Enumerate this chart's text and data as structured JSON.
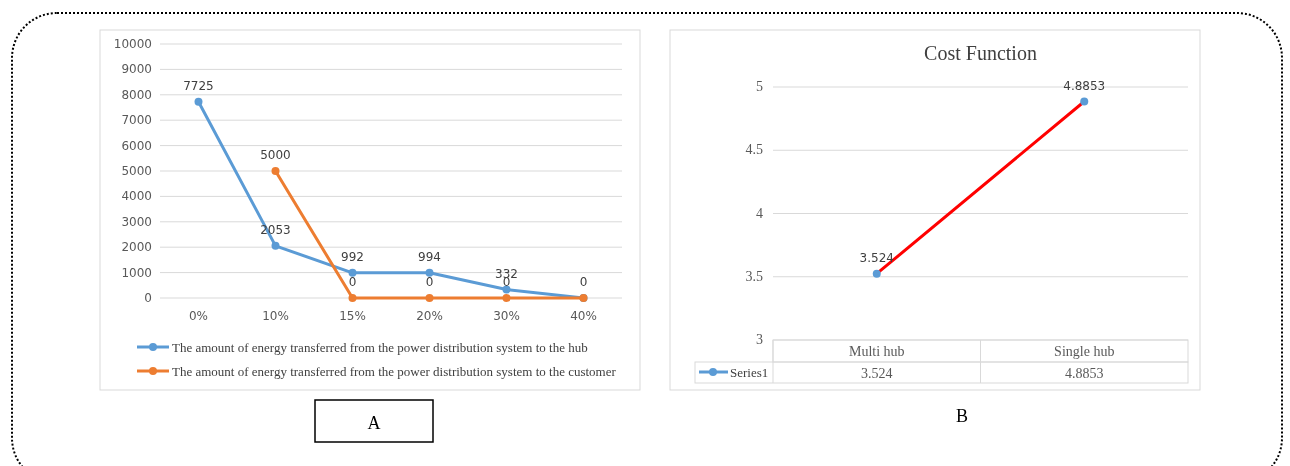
{
  "chart_data": [
    {
      "type": "line",
      "categories": [
        "0%",
        "10%",
        "15%",
        "20%",
        "30%",
        "40%"
      ],
      "series": [
        {
          "name": "The amount of energy transferred from the power distribution system to the hub",
          "color": "#5b9bd5",
          "values": [
            7725,
            2053,
            992,
            994,
            332,
            0
          ],
          "value_labels": [
            "7725",
            "2053",
            "992",
            "994",
            "332",
            "0"
          ]
        },
        {
          "name": "The amount of energy transferred from the power distribution system to the customer",
          "color": "#ed7d31",
          "values": [
            null,
            5000,
            0,
            0,
            0,
            0
          ],
          "value_labels": [
            null,
            "5000",
            "0",
            "0",
            "0",
            null
          ]
        }
      ],
      "ylim": [
        0,
        10000
      ],
      "yticks": [
        0,
        1000,
        2000,
        3000,
        4000,
        5000,
        6000,
        7000,
        8000,
        9000,
        10000
      ],
      "grid": "y",
      "legend": "bottom",
      "marker": "circle",
      "annotations": [
        "A"
      ]
    },
    {
      "type": "line",
      "title": "Cost Function",
      "categories": [
        "Multi hub",
        "Single hub"
      ],
      "series": [
        {
          "name": "Series1",
          "color": "#ff0000",
          "colors": [
            "#5b9bd5",
            "#5b9bd5"
          ],
          "values": [
            3.524,
            4.8853
          ],
          "value_labels": [
            "3.524",
            "4.8853"
          ]
        }
      ],
      "ylim": [
        3,
        5
      ],
      "yticks": [
        3,
        3.5,
        4,
        4.5,
        5
      ],
      "grid": "y",
      "legend": "bottom",
      "marker": "circle",
      "annotations": [
        "B",
        "3.524",
        "4.8853"
      ]
    }
  ]
}
